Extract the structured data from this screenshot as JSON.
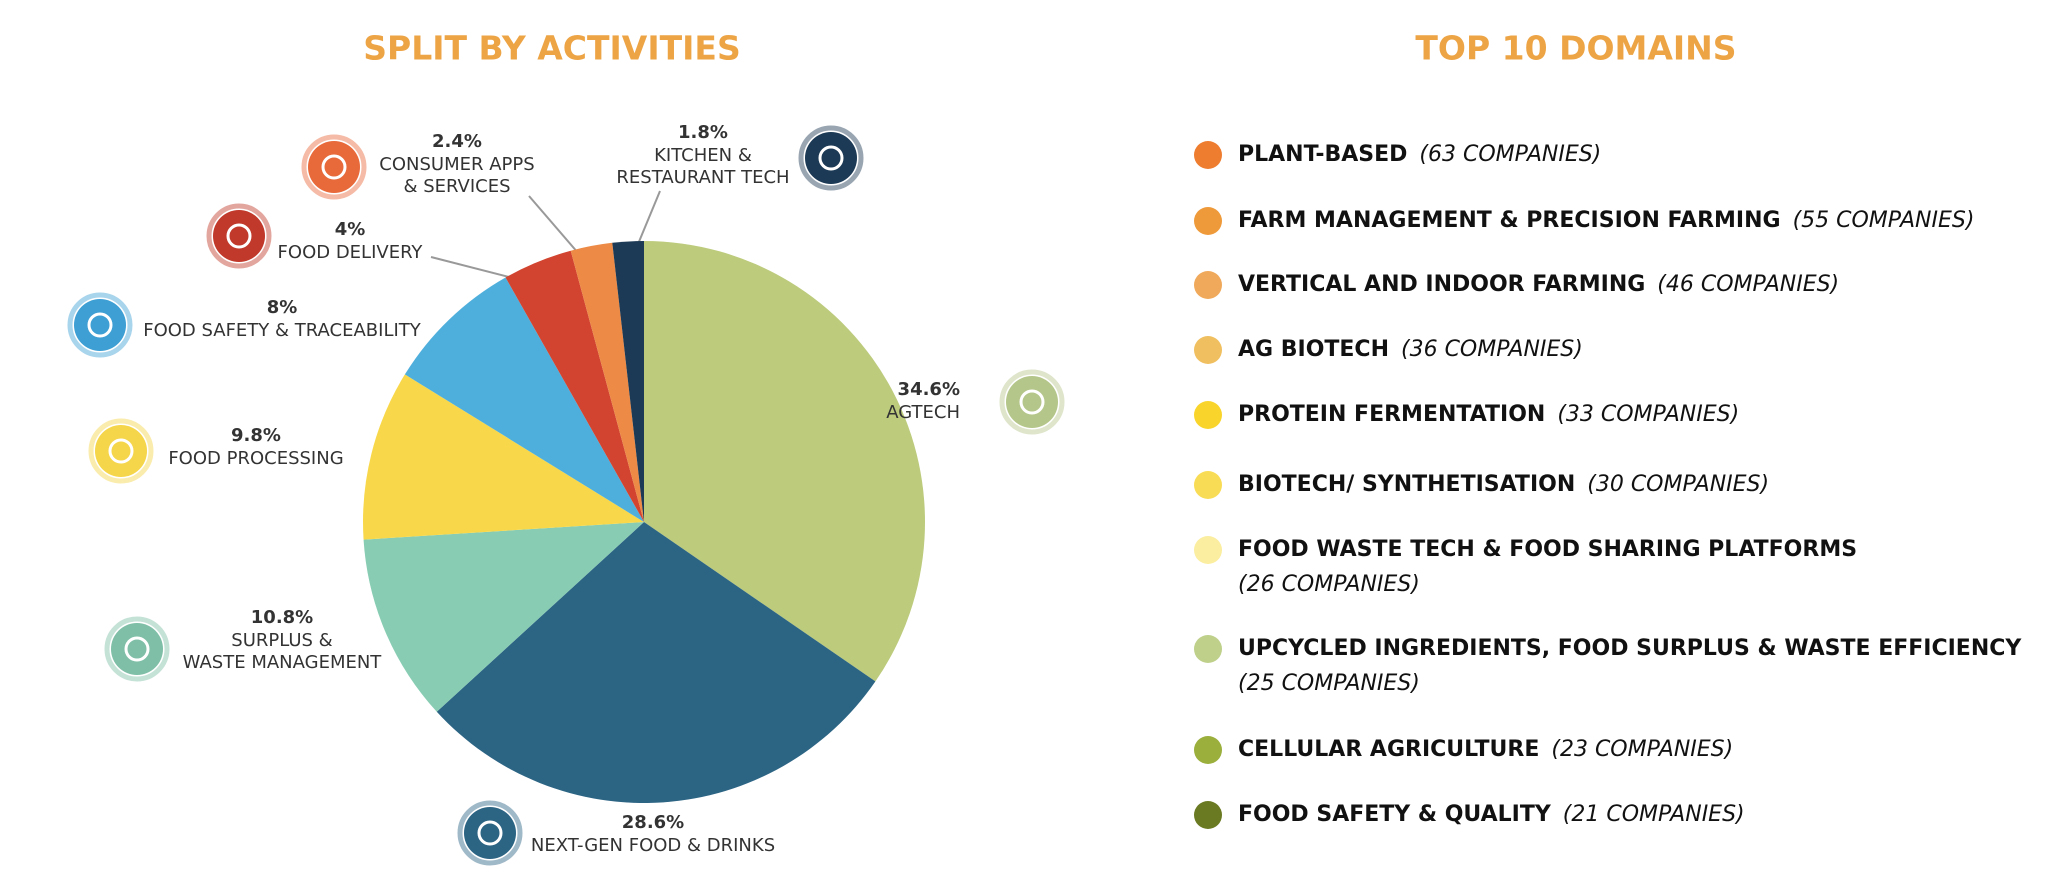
{
  "chart_data": {
    "type": "pie",
    "title": "SPLIT BY ACTIVITIES",
    "categories": [
      "AGTECH",
      "NEXT-GEN FOOD & DRINKS",
      "SURPLUS &\nWASTE MANAGEMENT",
      "FOOD PROCESSING",
      "FOOD SAFETY & TRACEABILITY",
      "FOOD DELIVERY",
      "CONSUMER  APPS\n&  SERVICES",
      "KITCHEN &\nRESTAURANT TECH"
    ],
    "values": [
      34.6,
      28.6,
      10.8,
      9.8,
      8,
      4,
      2.4,
      1.8
    ],
    "value_labels": [
      "34.6%",
      "28.6%",
      "10.8%",
      "9.8%",
      "8%",
      "4%",
      "2.4%",
      "1.8%"
    ],
    "colors": [
      "#bccb7c",
      "#2c6484",
      "#88cdb3",
      "#f8d84a",
      "#4fafdc",
      "#d24430",
      "#ec8a46",
      "#1c3a55"
    ]
  },
  "domains": {
    "title": "TOP 10 DOMAINS",
    "items": [
      {
        "name": "PLANT-BASED",
        "count": "(63 COMPANIES)",
        "color": "#ee7d30"
      },
      {
        "name": "FARM MANAGEMENT & PRECISION FARMING",
        "count": "(55 COMPANIES)",
        "color": "#ef9a3a"
      },
      {
        "name": "VERTICAL AND INDOOR FARMING",
        "count": "(46 COMPANIES)",
        "color": "#f0a95a"
      },
      {
        "name": "AG BIOTECH",
        "count": "(36 COMPANIES)",
        "color": "#f0c060"
      },
      {
        "name": "PROTEIN FERMENTATION",
        "count": "(33 COMPANIES)",
        "color": "#f9d52c"
      },
      {
        "name": "BIOTECH/ SYNTHETISATION",
        "count": "(30 COMPANIES)",
        "color": "#f9dc55"
      },
      {
        "name": "FOOD WASTE TECH & FOOD SHARING PLATFORMS",
        "count": "(26 COMPANIES)",
        "color": "#fbeea0"
      },
      {
        "name": "UPCYCLED INGREDIENTS, FOOD SURPLUS & WASTE EFFICIENCY",
        "count": "(25 COMPANIES)",
        "color": "#bed08a"
      },
      {
        "name": "CELLULAR AGRICULTURE",
        "count": "(23 COMPANIES)",
        "color": "#9aaf3c"
      },
      {
        "name": "FOOD SAFETY & QUALITY",
        "count": "(21 COMPANIES)",
        "color": "#6a7a22"
      }
    ]
  }
}
